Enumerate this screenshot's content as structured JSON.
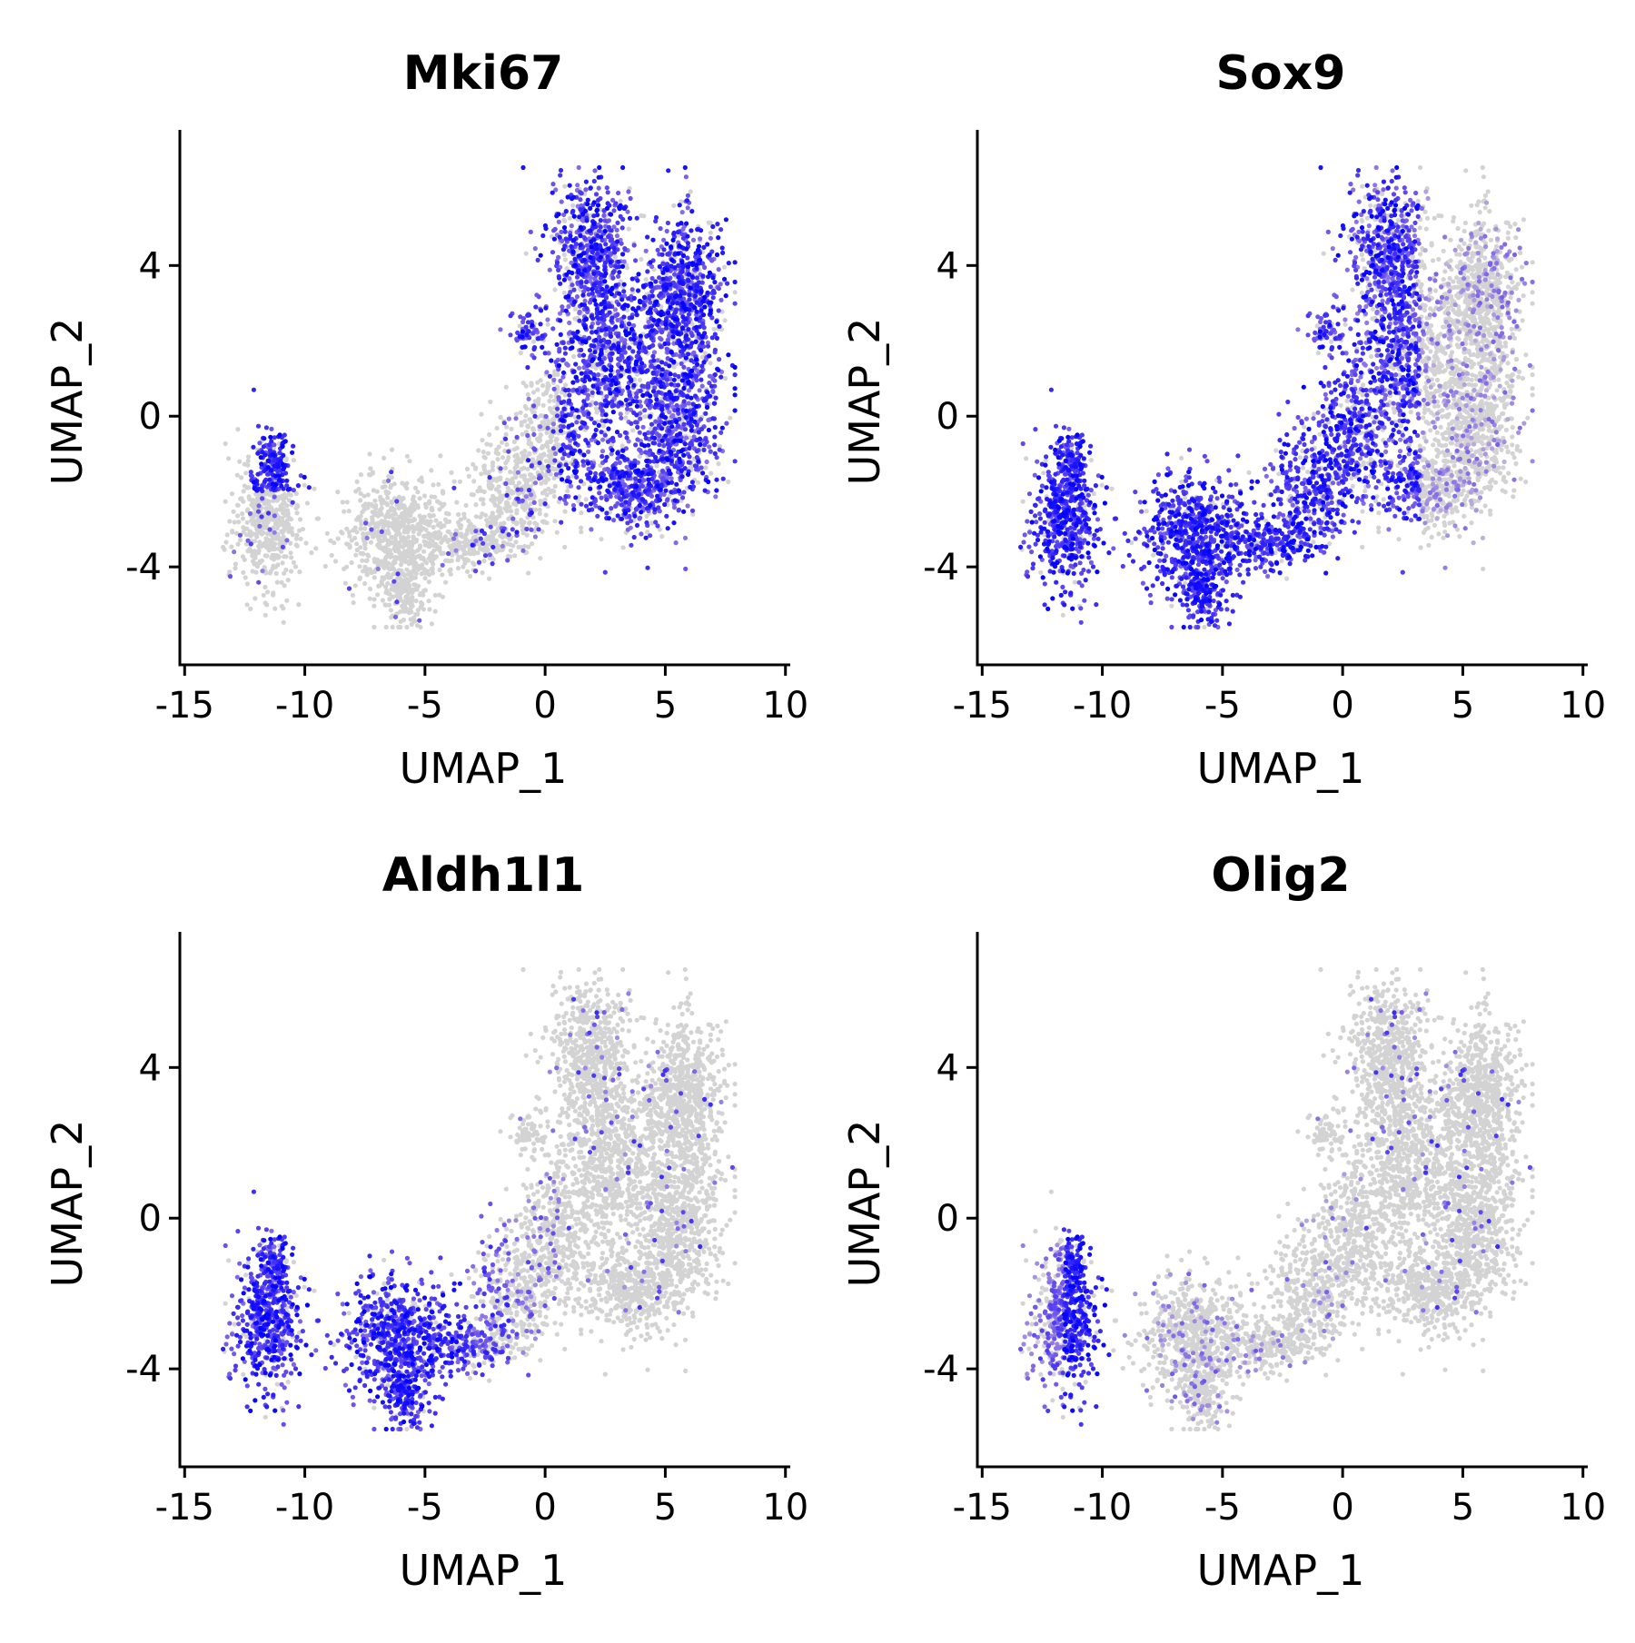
{
  "figure": {
    "background": "#ffffff",
    "low_color": "#d3d3d3",
    "high_color": "#0000ff"
  },
  "chart_data": [
    {
      "type": "scatter",
      "title": "Mki67",
      "xlabel": "UMAP_1",
      "ylabel": "UMAP_2",
      "xlim": [
        -15.2,
        10.2
      ],
      "ylim": [
        -6.6,
        7.6
      ],
      "xticks": [
        -15,
        -10,
        -5,
        0,
        5,
        10
      ],
      "xtick_labels": [
        "-15",
        "-10",
        "-5",
        "0",
        "5",
        "10"
      ],
      "yticks": [
        -4,
        0,
        4
      ],
      "ytick_labels": [
        "-4",
        "0",
        "4"
      ],
      "grid": false,
      "legend": "none",
      "color_scale": [
        "#d3d3d3",
        "#0000ff"
      ],
      "feature_expression_by_region": [
        {
          "region": "far-left cluster (UMAP_1 -13 to -10, UMAP_2 -5 to -0.5)",
          "level": "low; high only at top tip near (-11.5, -1.2)"
        },
        {
          "region": "middle cluster (UMAP_1 -9 to -3, UMAP_2 -5.6 to -1)",
          "level": "low"
        },
        {
          "region": "lower bridge (UMAP_1 -4 to 1, UMAP_2 -4 to 0)",
          "level": "low, scattered positive cells"
        },
        {
          "region": "upper-right lobe (UMAP_1 0 to 8, UMAP_2 -3 to 6.5)",
          "level": "high"
        }
      ]
    },
    {
      "type": "scatter",
      "title": "Sox9",
      "xlabel": "UMAP_1",
      "ylabel": "UMAP_2",
      "xlim": [
        -15.2,
        10.2
      ],
      "ylim": [
        -6.6,
        7.6
      ],
      "xticks": [
        -15,
        -10,
        -5,
        0,
        5,
        10
      ],
      "xtick_labels": [
        "-15",
        "-10",
        "-5",
        "0",
        "5",
        "10"
      ],
      "yticks": [
        -4,
        0,
        4
      ],
      "ytick_labels": [
        "-4",
        "0",
        "4"
      ],
      "grid": false,
      "legend": "none",
      "color_scale": [
        "#d3d3d3",
        "#0000ff"
      ],
      "feature_expression_by_region": [
        {
          "region": "far-left cluster",
          "level": "high"
        },
        {
          "region": "middle cluster",
          "level": "high"
        },
        {
          "region": "lower bridge",
          "level": "high"
        },
        {
          "region": "upper-right lobe, left side (UMAP_1 0 to 3)",
          "level": "high"
        },
        {
          "region": "upper-right lobe, right side (UMAP_1 4 to 8)",
          "level": "low"
        }
      ]
    },
    {
      "type": "scatter",
      "title": "Aldh1l1",
      "xlabel": "UMAP_1",
      "ylabel": "UMAP_2",
      "xlim": [
        -15.2,
        10.2
      ],
      "ylim": [
        -6.6,
        7.6
      ],
      "xticks": [
        -15,
        -10,
        -5,
        0,
        5,
        10
      ],
      "xtick_labels": [
        "-15",
        "-10",
        "-5",
        "0",
        "5",
        "10"
      ],
      "yticks": [
        -4,
        0,
        4
      ],
      "ytick_labels": [
        "-4",
        "0",
        "4"
      ],
      "grid": false,
      "legend": "none",
      "color_scale": [
        "#d3d3d3",
        "#0000ff"
      ],
      "feature_expression_by_region": [
        {
          "region": "far-left cluster",
          "level": "high"
        },
        {
          "region": "middle cluster",
          "level": "high"
        },
        {
          "region": "lower bridge",
          "level": "medium, fading toward UMAP_1 0"
        },
        {
          "region": "upper-right lobe",
          "level": "low"
        }
      ]
    },
    {
      "type": "scatter",
      "title": "Olig2",
      "xlabel": "UMAP_1",
      "ylabel": "UMAP_2",
      "xlim": [
        -15.2,
        10.2
      ],
      "ylim": [
        -6.6,
        7.6
      ],
      "xticks": [
        -15,
        -10,
        -5,
        0,
        5,
        10
      ],
      "xtick_labels": [
        "-15",
        "-10",
        "-5",
        "0",
        "5",
        "10"
      ],
      "yticks": [
        -4,
        0,
        4
      ],
      "ytick_labels": [
        "-4",
        "0",
        "4"
      ],
      "grid": false,
      "legend": "none",
      "color_scale": [
        "#d3d3d3",
        "#0000ff"
      ],
      "feature_expression_by_region": [
        {
          "region": "far-left cluster, right edge (UMAP_1 -11.5 to -10)",
          "level": "high"
        },
        {
          "region": "far-left cluster, left part",
          "level": "medium"
        },
        {
          "region": "middle cluster",
          "level": "low, sparse positive cells"
        },
        {
          "region": "lower bridge",
          "level": "low"
        },
        {
          "region": "upper-right lobe",
          "level": "low"
        }
      ]
    }
  ]
}
